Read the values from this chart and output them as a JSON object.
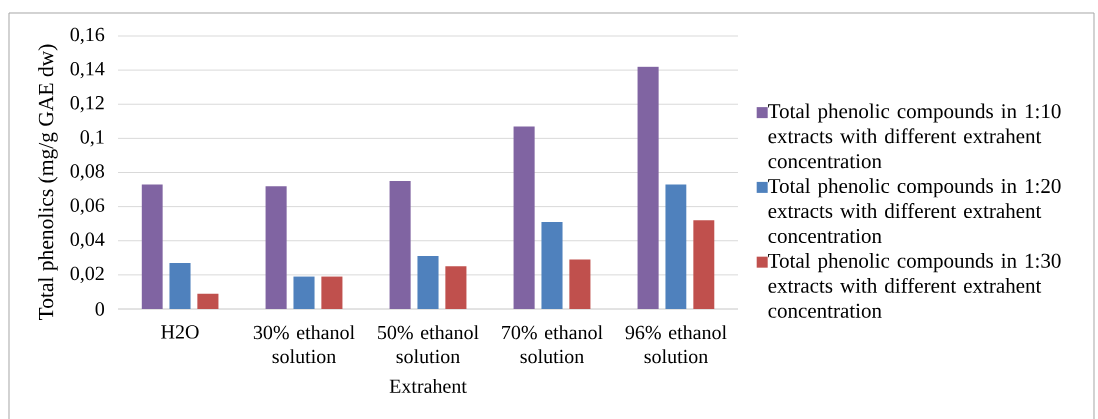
{
  "chart_data": {
    "type": "bar",
    "xlabel": "Extrahent",
    "ylabel": "Total phenolics (mg/g GAE dw)",
    "categories": [
      "H2O",
      "30% ethanol solution",
      "50% ethanol solution",
      "70% ethanol solution",
      "96% ethanol solution"
    ],
    "series": [
      {
        "name": "Total phenolic compounds in 1:10 extracts with different extrahent concentration",
        "color": "#8064a2",
        "values": [
          0.073,
          0.072,
          0.075,
          0.107,
          0.142
        ]
      },
      {
        "name": "Total phenolic compounds in 1:20 extracts with different extrahent concentration",
        "color": "#4f81bd",
        "values": [
          0.027,
          0.019,
          0.031,
          0.051,
          0.073
        ]
      },
      {
        "name": "Total phenolic compounds in 1:30 extracts with different extrahent concentration",
        "color": "#c0504d",
        "values": [
          0.009,
          0.019,
          0.025,
          0.029,
          0.052
        ]
      }
    ],
    "ylim": [
      0,
      0.16
    ],
    "yticks": [
      0,
      {
        "value": 0.02,
        "label": "0,02"
      },
      {
        "value": 0.04,
        "label": "0,04"
      },
      {
        "value": 0.06,
        "label": "0,06"
      },
      {
        "value": 0.08,
        "label": "0,08"
      },
      {
        "value": 0.1,
        "label": "0,1"
      },
      {
        "value": 0.12,
        "label": "0,12"
      },
      {
        "value": 0.14,
        "label": "0,14"
      },
      {
        "value": 0.16,
        "label": "0,16"
      }
    ],
    "grid": "y",
    "legend": "right"
  }
}
